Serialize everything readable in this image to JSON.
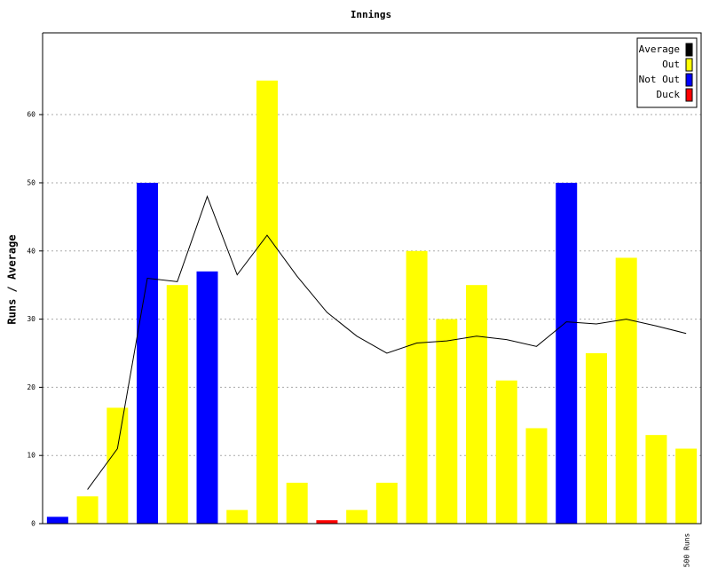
{
  "chart_data": {
    "type": "bar",
    "title": "Innings",
    "y_label": "Runs / Average",
    "x_label": "500 Runs",
    "categories": [
      null,
      null,
      null,
      null,
      null,
      null,
      null,
      null,
      null,
      null,
      null,
      null,
      null,
      null,
      null,
      null,
      null,
      null,
      null,
      null,
      null,
      null
    ],
    "series": [
      {
        "name": "Average",
        "color": "#000000",
        "type": "line",
        "values": [
          null,
          5,
          11,
          36,
          35.5,
          48,
          36.5,
          42.3,
          36.3,
          31,
          27.5,
          25,
          26.5,
          26.8,
          27.5,
          27,
          26,
          29.6,
          29.3,
          30,
          29,
          27.9
        ]
      },
      {
        "name": "Out",
        "color": "#ffff00",
        "values": [
          null,
          4,
          17,
          null,
          35,
          null,
          2,
          65,
          6,
          null,
          2,
          6,
          40,
          30,
          35,
          21,
          14,
          null,
          25,
          39,
          13,
          11
        ]
      },
      {
        "name": "Not Out",
        "color": "#0000ff",
        "values": [
          1,
          null,
          null,
          50,
          null,
          37,
          null,
          null,
          null,
          null,
          null,
          null,
          null,
          null,
          null,
          null,
          null,
          50,
          null,
          null,
          null,
          null
        ]
      },
      {
        "name": "Duck",
        "color": "#ff0000",
        "values": [
          null,
          null,
          null,
          null,
          null,
          null,
          null,
          null,
          null,
          0.5,
          null,
          null,
          null,
          null,
          null,
          null,
          null,
          null,
          null,
          null,
          null,
          null
        ]
      }
    ],
    "ylim": [
      0,
      72
    ],
    "yticks": [
      0,
      10,
      20,
      30,
      40,
      50,
      60
    ],
    "grid": true,
    "legend": "top-right"
  }
}
